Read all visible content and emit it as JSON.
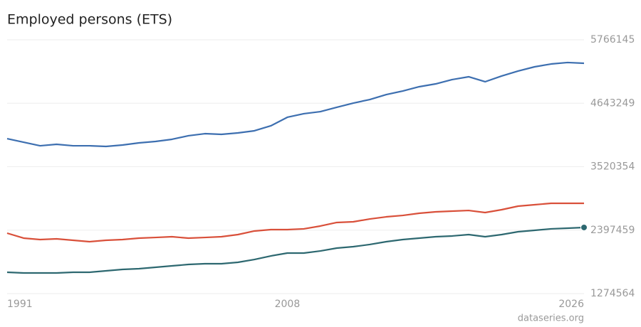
{
  "chart_data": {
    "type": "line",
    "title": "Employed persons (ETS)",
    "source": "dataseries.org",
    "x": [
      1991,
      1992,
      1993,
      1994,
      1995,
      1996,
      1997,
      1998,
      1999,
      2000,
      2001,
      2002,
      2003,
      2004,
      2005,
      2006,
      2007,
      2008,
      2009,
      2010,
      2011,
      2012,
      2013,
      2014,
      2015,
      2016,
      2017,
      2018,
      2019,
      2020,
      2021,
      2022,
      2023,
      2024,
      2025,
      2026
    ],
    "xlim": [
      1991,
      2026
    ],
    "xticks": [
      1991,
      2008,
      2026
    ],
    "ylim": [
      1274564,
      5766145
    ],
    "yticks": [
      1274564,
      2397459,
      3520354,
      4643249,
      5766145
    ],
    "grid": true,
    "end_marker": true,
    "series": [
      {
        "color": "#3d6fb0",
        "values": [
          4017000,
          3954000,
          3891000,
          3917000,
          3891000,
          3891000,
          3879000,
          3904000,
          3942000,
          3967000,
          4005000,
          4068000,
          4105000,
          4093000,
          4118000,
          4156000,
          4244000,
          4395000,
          4458000,
          4495000,
          4571000,
          4646000,
          4709000,
          4797000,
          4860000,
          4936000,
          4986000,
          5062000,
          5112000,
          5024000,
          5125000,
          5213000,
          5288000,
          5338000,
          5364000,
          5351000
        ]
      },
      {
        "color": "#d9503a",
        "values": [
          2344000,
          2256000,
          2231000,
          2243000,
          2218000,
          2193000,
          2218000,
          2231000,
          2256000,
          2268000,
          2281000,
          2256000,
          2268000,
          2281000,
          2319000,
          2382000,
          2407000,
          2407000,
          2420000,
          2470000,
          2533000,
          2545000,
          2595000,
          2633000,
          2658000,
          2696000,
          2721000,
          2734000,
          2746000,
          2709000,
          2759000,
          2822000,
          2847000,
          2872000,
          2872000,
          2872000
        ]
      },
      {
        "color": "#2d6870",
        "values": [
          1652000,
          1639000,
          1639000,
          1639000,
          1652000,
          1652000,
          1677000,
          1702000,
          1715000,
          1740000,
          1765000,
          1790000,
          1803000,
          1803000,
          1828000,
          1878000,
          1941000,
          1992000,
          1992000,
          2029000,
          2080000,
          2105000,
          2143000,
          2193000,
          2231000,
          2256000,
          2281000,
          2294000,
          2319000,
          2281000,
          2319000,
          2369000,
          2394000,
          2420000,
          2432000,
          2445000
        ]
      }
    ]
  }
}
